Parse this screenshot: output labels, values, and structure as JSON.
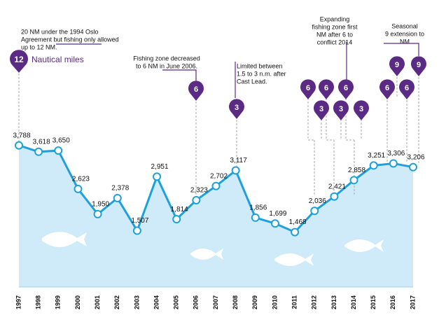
{
  "chart_data": {
    "type": "area-line",
    "categories": [
      "1997",
      "1998",
      "1999",
      "2000",
      "2001",
      "2002",
      "2003",
      "2004",
      "2005",
      "2006",
      "2007",
      "2008",
      "2009",
      "2010",
      "2011",
      "2012",
      "2013",
      "2014",
      "2015",
      "2016",
      "2017"
    ],
    "values": [
      3788,
      3618,
      3650,
      2623,
      1950,
      2378,
      1507,
      2951,
      1814,
      2323,
      2702,
      3117,
      1856,
      1699,
      1468,
      2036,
      2421,
      2858,
      3251,
      3306,
      3206
    ],
    "value_labels": [
      "3,788",
      "3,618",
      "3,650",
      "2,623",
      "1,950",
      "2,378",
      "1,507",
      "2,951",
      "1,814",
      "2,323",
      "2,702",
      "3,117",
      "1,856",
      "1,699",
      "1,468",
      "2,036",
      "2,421",
      "2,858",
      "3,251",
      "3,306",
      "3,206"
    ],
    "color": "#1ea0dc",
    "area_color": "#cfeaf8",
    "pin_color": "#5a2a84",
    "legend": "Nautical miles",
    "pins": [
      "12",
      "6",
      "3",
      "6",
      "6",
      "6",
      "3",
      "3",
      "3",
      "6",
      "6",
      "9",
      "9"
    ],
    "annotations": [
      [
        "20 NM under the 1994 Oslo",
        "Agreement but fishing only allowed",
        "up to 12 NM."
      ],
      [
        "Fishing zone decreased",
        "to 6 NM in June 2006."
      ],
      [
        "Limited between",
        "1.5 to 3 n.m. after",
        "Cast Lead."
      ],
      [
        "Expanding",
        "fishing zone first",
        "NM after 6 to",
        "conflict 2014"
      ],
      [
        "Seasonal",
        "9 extension to",
        "NM"
      ]
    ]
  }
}
